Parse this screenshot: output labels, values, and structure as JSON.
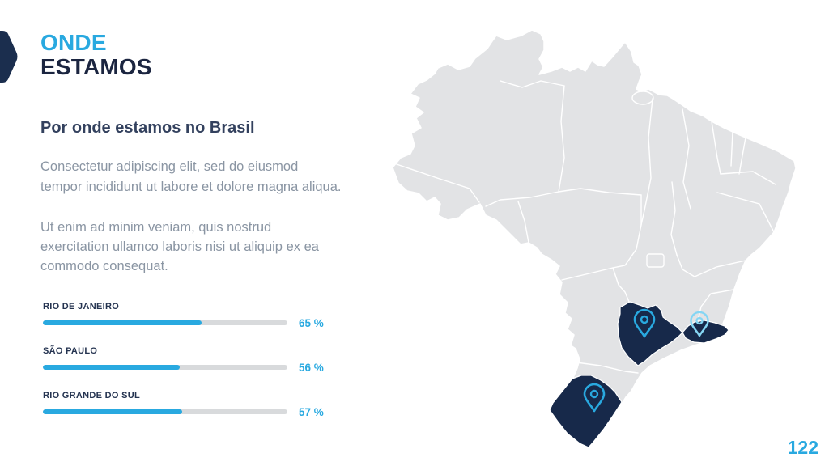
{
  "slide": {
    "title_line1": "ONDE",
    "title_line2": "ESTAMOS",
    "heading": "Por onde estamos no Brasil",
    "paragraph1": "Consectetur adipiscing elit, sed do eiusmod tempor incididunt ut labore et dolore magna aliqua.",
    "paragraph2": "Ut enim ad minim veniam, quis nostrud exercitation ullamco laboris nisi ut aliquip ex ea commodo consequat.",
    "page_number": "122"
  },
  "chart_data": {
    "type": "bar",
    "title": "Por onde estamos no Brasil",
    "categories": [
      "RIO DE JANEIRO",
      "SÃO PAULO",
      "RIO GRANDE DO SUL"
    ],
    "values": [
      65,
      56,
      57
    ],
    "value_labels": [
      "65 %",
      "56 %",
      "57 %"
    ],
    "xlim": [
      0,
      100
    ],
    "bar_color": "#29A9E0",
    "track_color": "#D8DADC",
    "legend": "none",
    "grid": "off"
  },
  "map": {
    "name": "brazil-states-map",
    "highlighted_states": [
      "São Paulo",
      "Rio de Janeiro",
      "Rio Grande do Sul"
    ],
    "pins": [
      {
        "state": "São Paulo",
        "color": "#29A9E0"
      },
      {
        "state": "Rio de Janeiro",
        "color": "#85D6F4"
      },
      {
        "state": "Rio Grande do Sul",
        "color": "#29A9E0"
      }
    ]
  },
  "colors": {
    "accent": "#29A9E0",
    "accent_light": "#85D6F4",
    "navy_text": "#1B2540",
    "state_navy": "#17294A",
    "map_gray": "#E2E3E5",
    "map_border": "#FFFFFF",
    "heading_text": "#33415E",
    "body_text": "#8A95A3"
  }
}
